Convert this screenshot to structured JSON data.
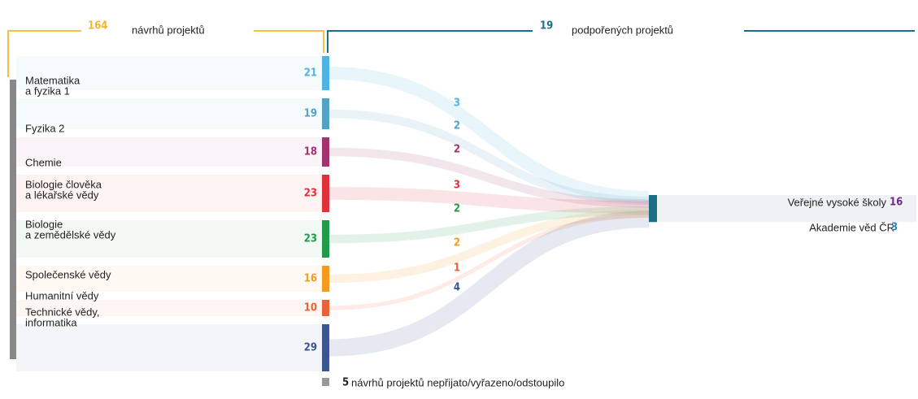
{
  "header": {
    "proposals_count": 164,
    "proposals_label": "návrhů projektů",
    "supported_count": 19,
    "supported_label": "podpořených projektů"
  },
  "fields": [
    {
      "label": [
        "Matematika",
        "a fyzika 1"
      ],
      "proposals": 21,
      "supported": 3,
      "color": "#4fb3e3"
    },
    {
      "label": [
        "Fyzika 2"
      ],
      "proposals": 19,
      "supported": 2,
      "color": "#52a3c4"
    },
    {
      "label": [
        "Chemie"
      ],
      "proposals": 18,
      "supported": 2,
      "color": "#a3336f"
    },
    {
      "label": [
        "Biologie člověka",
        "a lékařské vědy"
      ],
      "proposals": 23,
      "supported": 3,
      "color": "#e0303b"
    },
    {
      "label": [
        "Biologie",
        "a zemědělské vědy"
      ],
      "proposals": 23,
      "supported": 2,
      "color": "#219a4a"
    },
    {
      "label": [
        "Společenské vědy"
      ],
      "proposals": 16,
      "supported": 2,
      "color": "#f29c1f"
    },
    {
      "label": [
        "Humanitní vědy"
      ],
      "proposals": 10,
      "supported": 1,
      "color": "#e8623a"
    },
    {
      "label": [
        "Technické vědy,",
        "informatika"
      ],
      "proposals": 29,
      "supported": 4,
      "color": "#3b5592"
    }
  ],
  "rejected": {
    "count": 5,
    "label": "návrhů projektů nepřijato/vyřazeno/odstoupilo"
  },
  "targets": [
    {
      "label": "Veřejné vysoké školy",
      "count": 16,
      "color": "#6a2b84"
    },
    {
      "label": "Akademie věd ČR",
      "count": 3,
      "color": "#2a87c1"
    }
  ]
}
